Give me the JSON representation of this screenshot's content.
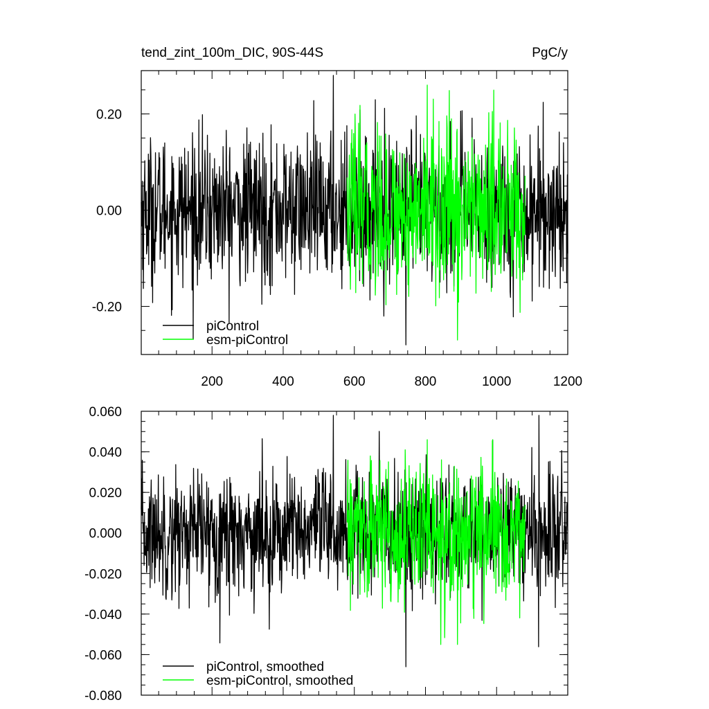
{
  "chart_data": [
    {
      "type": "line",
      "title": "tend_zint_100m_DIC, 90S-44S",
      "units": "PgC/y",
      "xlim": [
        1,
        1200
      ],
      "ylim": [
        -0.3,
        0.29
      ],
      "x_ticks": [
        200,
        400,
        600,
        800,
        1000,
        1200
      ],
      "x_tick_labels": [
        "200",
        "400",
        "600",
        "800",
        "1000",
        "1200"
      ],
      "y_ticks": [
        0.2,
        0.0,
        -0.2
      ],
      "y_tick_labels": [
        "0.20",
        "0.00",
        "-0.20"
      ],
      "series": [
        {
          "name": "piControl",
          "color": "#000000",
          "x_start": 1,
          "x_end": 1200,
          "amplitude": 0.085,
          "peak_max": 0.28,
          "peak_min": -0.28
        },
        {
          "name": "esm-piControl",
          "color": "#00ff00",
          "x_start": 580,
          "x_end": 1080,
          "amplitude": 0.095,
          "peak_max": 0.26,
          "peak_min": -0.27
        }
      ],
      "legend": {
        "placement": "bottom-left"
      }
    },
    {
      "type": "line",
      "xlim": [
        1,
        1200
      ],
      "ylim": [
        -0.08,
        0.06
      ],
      "x_ticks": [
        200,
        400,
        600,
        800,
        1000,
        1200
      ],
      "y_ticks": [
        0.06,
        0.04,
        0.02,
        0.0,
        -0.02,
        -0.04,
        -0.06,
        -0.08
      ],
      "y_tick_labels": [
        "0.060",
        "0.040",
        "0.020",
        "0.000",
        "-0.020",
        "-0.040",
        "-0.060",
        "-0.080"
      ],
      "series": [
        {
          "name": "piControl, smoothed",
          "color": "#000000",
          "x_start": 1,
          "x_end": 1200,
          "amplitude": 0.017,
          "peak_max": 0.058,
          "peak_min": -0.066
        },
        {
          "name": "esm-piControl, smoothed",
          "color": "#00ff00",
          "x_start": 580,
          "x_end": 1080,
          "amplitude": 0.019,
          "peak_max": 0.046,
          "peak_min": -0.055
        }
      ],
      "legend": {
        "placement": "bottom-left"
      }
    }
  ]
}
